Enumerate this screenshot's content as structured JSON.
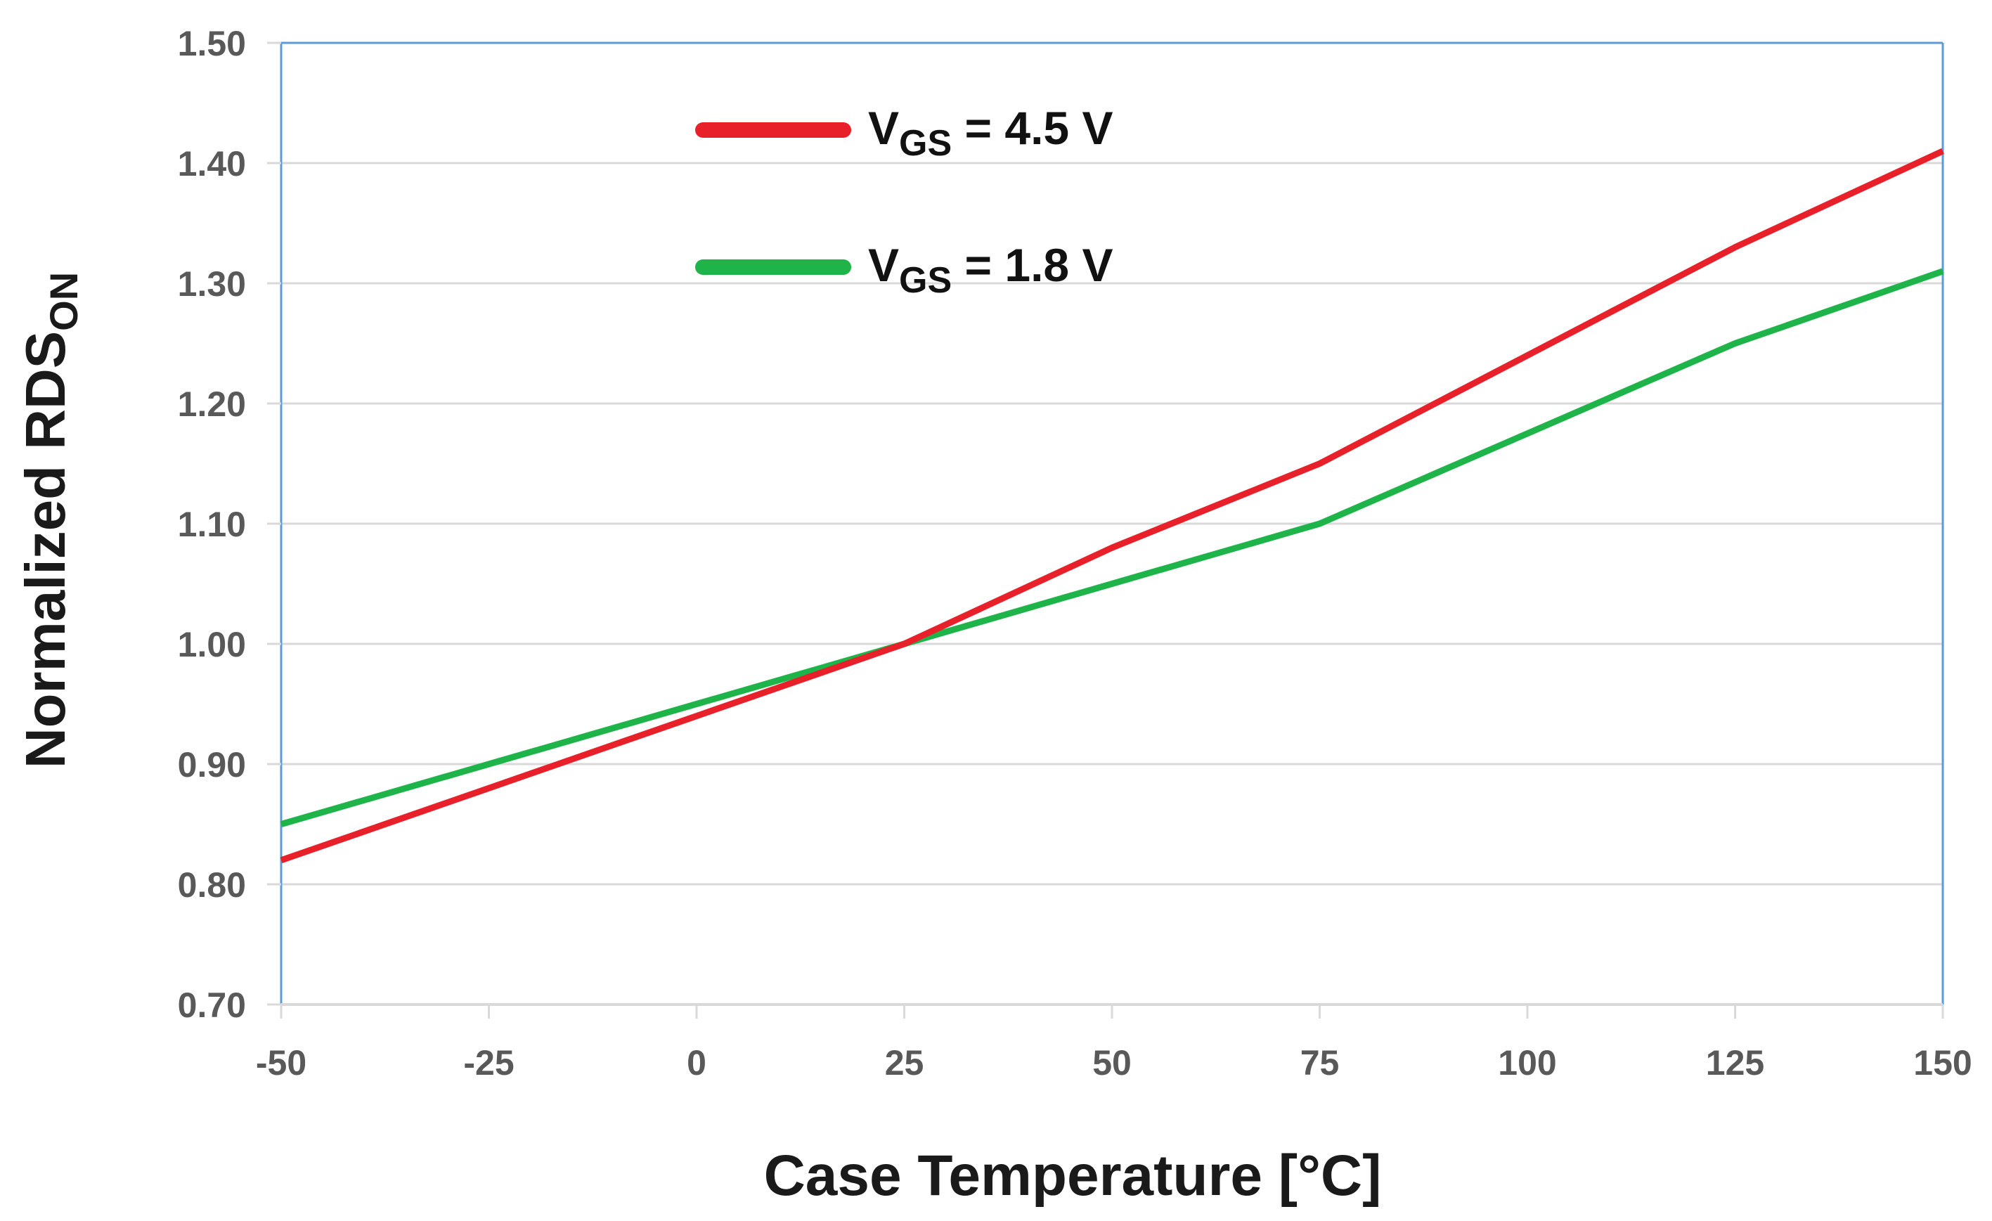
{
  "chart_data": {
    "type": "line",
    "title": "",
    "xlabel": "Case Temperature [°C]",
    "ylabel_main": "Normalized RDS",
    "ylabel_sub": "ON",
    "x": [
      -50,
      -25,
      0,
      25,
      50,
      75,
      100,
      125,
      150
    ],
    "xlim": [
      -50,
      150
    ],
    "ylim": [
      0.7,
      1.5
    ],
    "x_ticks": [
      -50,
      -25,
      0,
      25,
      50,
      75,
      100,
      125,
      150
    ],
    "x_tick_labels": [
      "-50",
      "-25",
      "0",
      "25",
      "50",
      "75",
      "100",
      "125",
      "150"
    ],
    "y_ticks": [
      0.7,
      0.8,
      0.9,
      1.0,
      1.1,
      1.2,
      1.3,
      1.4,
      1.5
    ],
    "y_tick_labels": [
      "0.70",
      "0.80",
      "0.90",
      "1.00",
      "1.10",
      "1.20",
      "1.30",
      "1.40",
      "1.50"
    ],
    "grid": "horizontal",
    "legend_position": "top-center",
    "series": [
      {
        "name": "VGS = 4.5 V",
        "label_main": "V",
        "label_sub": "GS",
        "label_rest": " = 4.5 V",
        "color": "#e8202a",
        "values": [
          0.82,
          0.88,
          0.94,
          1.0,
          1.08,
          1.15,
          1.24,
          1.33,
          1.41
        ]
      },
      {
        "name": "VGS = 1.8 V",
        "label_main": "V",
        "label_sub": "GS",
        "label_rest": " = 1.8 V",
        "color": "#1fb44a",
        "values": [
          0.85,
          0.9,
          0.95,
          1.0,
          1.05,
          1.1,
          1.175,
          1.25,
          1.31
        ]
      }
    ],
    "colors": {
      "grid": "#d9d9d9",
      "axis": "#5b9bd5",
      "tick_label": "#595959",
      "axis_title": "#1a1a1a"
    }
  }
}
